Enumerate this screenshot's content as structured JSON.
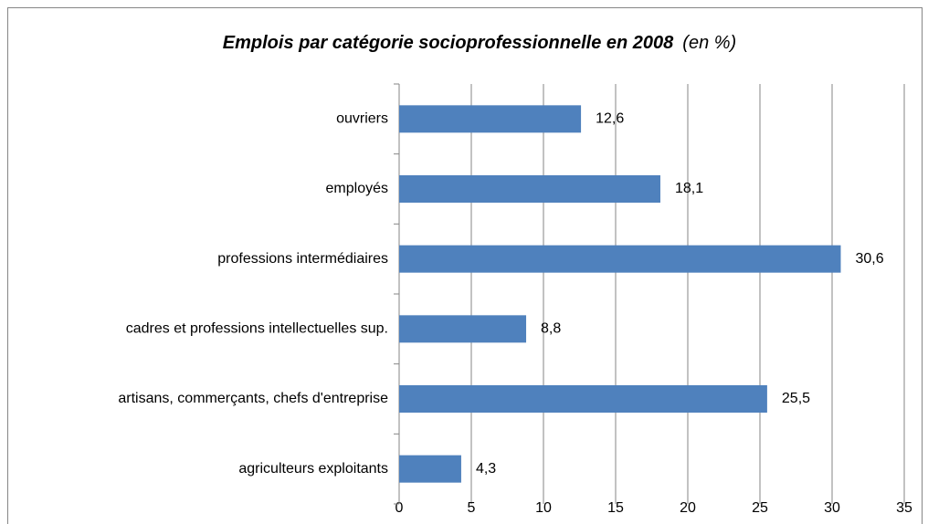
{
  "chart_data": {
    "type": "bar",
    "orientation": "horizontal",
    "title": "Emplois par catégorie  socioprofessionnelle  en 2008",
    "subtitle": "(en %)",
    "categories": [
      "ouvriers",
      "employés",
      "professions intermédiaires",
      "cadres et professions intellectuelles sup.",
      "artisans, commerçants, chefs d'entreprise",
      "agriculteurs exploitants"
    ],
    "values": [
      12.6,
      18.1,
      30.6,
      8.8,
      25.5,
      4.3
    ],
    "value_labels": [
      "12,6",
      "18,1",
      "30,6",
      "8,8",
      "25,5",
      "4,3"
    ],
    "color": "#4f81bd",
    "xlim": [
      0,
      35
    ],
    "xticks": [
      0,
      5,
      10,
      15,
      20,
      25,
      30,
      35
    ],
    "grid": true
  }
}
